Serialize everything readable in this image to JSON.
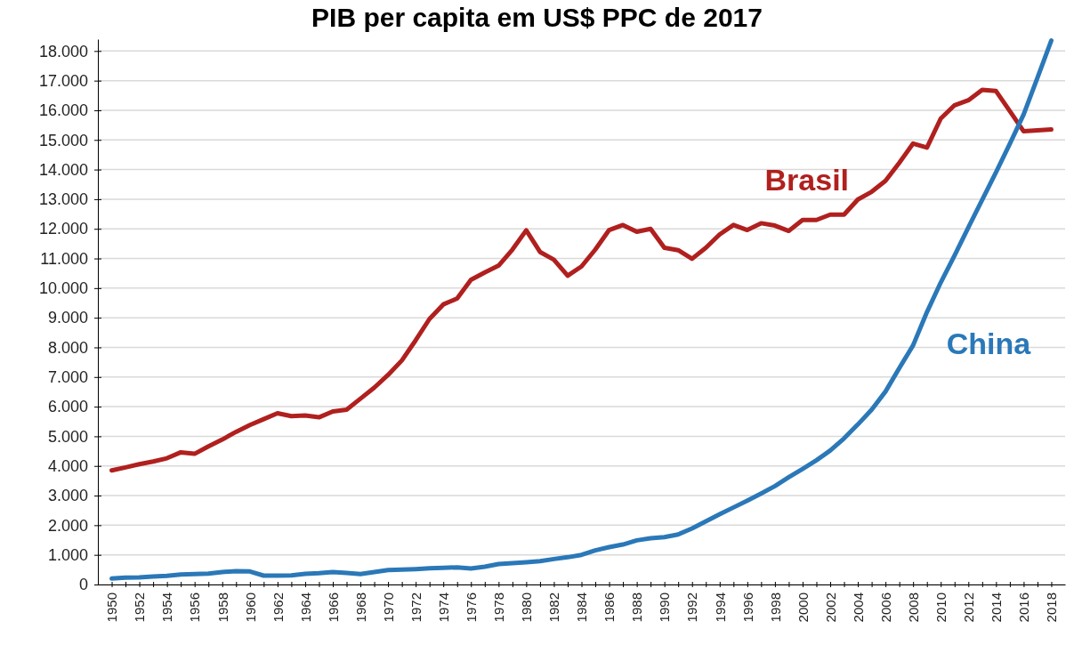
{
  "chart_data": {
    "type": "line",
    "title": "PIB per capita em US$ PPC de 2017",
    "x": [
      1950,
      1951,
      1952,
      1953,
      1954,
      1955,
      1956,
      1957,
      1958,
      1959,
      1960,
      1961,
      1962,
      1963,
      1964,
      1965,
      1966,
      1967,
      1968,
      1969,
      1970,
      1971,
      1972,
      1973,
      1974,
      1975,
      1976,
      1977,
      1978,
      1979,
      1980,
      1981,
      1982,
      1983,
      1984,
      1985,
      1986,
      1987,
      1988,
      1989,
      1990,
      1991,
      1992,
      1993,
      1994,
      1995,
      1996,
      1997,
      1998,
      1999,
      2000,
      2001,
      2002,
      2003,
      2004,
      2005,
      2006,
      2007,
      2008,
      2009,
      2010,
      2011,
      2012,
      2013,
      2014,
      2015,
      2016,
      2017,
      2018
    ],
    "series": [
      {
        "name": "Brasil",
        "color": "#b0201e",
        "values": [
          3850,
          3950,
          4060,
          4150,
          4260,
          4460,
          4410,
          4660,
          4890,
          5150,
          5380,
          5580,
          5780,
          5680,
          5700,
          5640,
          5840,
          5900,
          6270,
          6640,
          7070,
          7560,
          8240,
          8960,
          9450,
          9650,
          10280,
          10530,
          10760,
          11300,
          11950,
          11220,
          10960,
          10420,
          10730,
          11300,
          11960,
          12130,
          11900,
          12000,
          11360,
          11280,
          10990,
          11360,
          11810,
          12130,
          11960,
          12190,
          12110,
          11930,
          12300,
          12300,
          12480,
          12480,
          12990,
          13250,
          13620,
          14230,
          14880,
          14740,
          15720,
          16170,
          16340,
          16690,
          16650,
          15970,
          15290,
          15320,
          15350
        ]
      },
      {
        "name": "China",
        "color": "#2a78b8",
        "values": [
          200,
          230,
          240,
          270,
          290,
          340,
          350,
          370,
          420,
          450,
          440,
          300,
          300,
          310,
          360,
          380,
          420,
          390,
          350,
          420,
          490,
          500,
          520,
          550,
          560,
          580,
          540,
          600,
          690,
          720,
          750,
          790,
          860,
          920,
          1000,
          1150,
          1260,
          1350,
          1490,
          1560,
          1600,
          1690,
          1890,
          2130,
          2370,
          2600,
          2830,
          3070,
          3320,
          3620,
          3900,
          4190,
          4520,
          4930,
          5400,
          5900,
          6510,
          7300,
          8070,
          9190,
          10190,
          11100,
          12050,
          12980,
          13910,
          14870,
          15860,
          17100,
          18350
        ]
      }
    ],
    "xlim": [
      1949,
      2019
    ],
    "xticks": [
      {
        "value": 1950,
        "label": "1950"
      },
      {
        "value": 1951,
        "label": null
      },
      {
        "value": 1952,
        "label": "1952"
      },
      {
        "value": 1953,
        "label": null
      },
      {
        "value": 1954,
        "label": "1954"
      },
      {
        "value": 1955,
        "label": null
      },
      {
        "value": 1956,
        "label": "1956"
      },
      {
        "value": 1957,
        "label": null
      },
      {
        "value": 1958,
        "label": "1958"
      },
      {
        "value": 1959,
        "label": null
      },
      {
        "value": 1960,
        "label": "1960"
      },
      {
        "value": 1961,
        "label": null
      },
      {
        "value": 1962,
        "label": "1962"
      },
      {
        "value": 1963,
        "label": null
      },
      {
        "value": 1964,
        "label": "1964"
      },
      {
        "value": 1965,
        "label": null
      },
      {
        "value": 1966,
        "label": "1966"
      },
      {
        "value": 1967,
        "label": null
      },
      {
        "value": 1968,
        "label": "1968"
      },
      {
        "value": 1969,
        "label": null
      },
      {
        "value": 1970,
        "label": "1970"
      },
      {
        "value": 1971,
        "label": null
      },
      {
        "value": 1972,
        "label": "1972"
      },
      {
        "value": 1973,
        "label": null
      },
      {
        "value": 1974,
        "label": "1974"
      },
      {
        "value": 1975,
        "label": null
      },
      {
        "value": 1976,
        "label": "1976"
      },
      {
        "value": 1977,
        "label": null
      },
      {
        "value": 1978,
        "label": "1978"
      },
      {
        "value": 1979,
        "label": null
      },
      {
        "value": 1980,
        "label": "1980"
      },
      {
        "value": 1981,
        "label": null
      },
      {
        "value": 1982,
        "label": "1982"
      },
      {
        "value": 1983,
        "label": null
      },
      {
        "value": 1984,
        "label": "1984"
      },
      {
        "value": 1985,
        "label": null
      },
      {
        "value": 1986,
        "label": "1986"
      },
      {
        "value": 1987,
        "label": null
      },
      {
        "value": 1988,
        "label": "1988"
      },
      {
        "value": 1989,
        "label": null
      },
      {
        "value": 1990,
        "label": "1990"
      },
      {
        "value": 1991,
        "label": null
      },
      {
        "value": 1992,
        "label": "1992"
      },
      {
        "value": 1993,
        "label": null
      },
      {
        "value": 1994,
        "label": "1994"
      },
      {
        "value": 1995,
        "label": null
      },
      {
        "value": 1996,
        "label": "1996"
      },
      {
        "value": 1997,
        "label": null
      },
      {
        "value": 1998,
        "label": "1998"
      },
      {
        "value": 1999,
        "label": null
      },
      {
        "value": 2000,
        "label": "2000"
      },
      {
        "value": 2001,
        "label": null
      },
      {
        "value": 2002,
        "label": "2002"
      },
      {
        "value": 2003,
        "label": null
      },
      {
        "value": 2004,
        "label": "2004"
      },
      {
        "value": 2005,
        "label": null
      },
      {
        "value": 2006,
        "label": "2006"
      },
      {
        "value": 2007,
        "label": null
      },
      {
        "value": 2008,
        "label": "2008"
      },
      {
        "value": 2009,
        "label": null
      },
      {
        "value": 2010,
        "label": "2010"
      },
      {
        "value": 2011,
        "label": null
      },
      {
        "value": 2012,
        "label": "2012"
      },
      {
        "value": 2013,
        "label": null
      },
      {
        "value": 2014,
        "label": "2014"
      },
      {
        "value": 2015,
        "label": null
      },
      {
        "value": 2016,
        "label": "2016"
      },
      {
        "value": 2017,
        "label": null
      },
      {
        "value": 2018,
        "label": "2018"
      }
    ],
    "ylim": [
      0,
      18400
    ],
    "yticks": [
      0,
      {
        "value": 1000,
        "label": "1.000"
      },
      {
        "value": 2000,
        "label": "2.000"
      },
      {
        "value": 3000,
        "label": "3.000"
      },
      {
        "value": 4000,
        "label": "4.000"
      },
      {
        "value": 5000,
        "label": "5.000"
      },
      {
        "value": 6000,
        "label": "6.000"
      },
      {
        "value": 7000,
        "label": "7.000"
      },
      {
        "value": 8000,
        "label": "8.000"
      },
      {
        "value": 9000,
        "label": "9.000"
      },
      {
        "value": 10000,
        "label": "10.000"
      },
      {
        "value": 11000,
        "label": "11.000"
      },
      {
        "value": 12000,
        "label": "12.000"
      },
      {
        "value": 13000,
        "label": "13.000"
      },
      {
        "value": 14000,
        "label": "14.000"
      },
      {
        "value": 15000,
        "label": "15.000"
      },
      {
        "value": 16000,
        "label": "16.000"
      },
      {
        "value": 17000,
        "label": "17.000"
      },
      {
        "value": 18000,
        "label": "18.000"
      }
    ],
    "grid": "y",
    "legend": false,
    "marker": "none",
    "line_style": "solid"
  }
}
